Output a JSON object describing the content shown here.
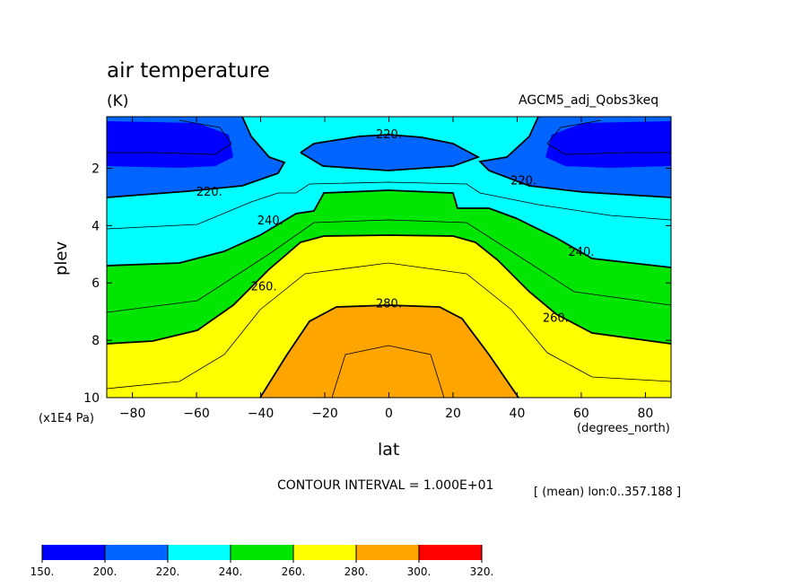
{
  "figure": {
    "title": "air temperature",
    "units": "(K)",
    "dataset": "AGCM5_adj_Qobs3keq",
    "contour_interval": "CONTOUR INTERVAL = 1.000E+01",
    "mean_note": "[ (mean) lon:0..357.188 ]",
    "x_axis_label": "lat",
    "y_axis_label": "plev",
    "x_units": "(degrees_north)",
    "y_units": "(x1E4 Pa)"
  },
  "chart_data": {
    "type": "contour",
    "title": "air temperature",
    "units": "K",
    "xlabel": "lat",
    "ylabel": "plev",
    "xlim": [
      -88,
      88
    ],
    "ylim": [
      10,
      0.2
    ],
    "xticks": [
      -80,
      -60,
      -40,
      -20,
      0,
      20,
      40,
      60,
      80
    ],
    "yticks": [
      2,
      4,
      6,
      8,
      10
    ],
    "contour_interval": 10,
    "contour_labels": [
      {
        "text": "220.",
        "lat": 0,
        "plev": 0.8
      },
      {
        "text": "220.",
        "lat": -56,
        "plev": 2.8
      },
      {
        "text": "220.",
        "lat": 42,
        "plev": 2.4
      },
      {
        "text": "240.",
        "lat": -37,
        "plev": 3.8
      },
      {
        "text": "240.",
        "lat": 60,
        "plev": 4.9
      },
      {
        "text": "260.",
        "lat": -39,
        "plev": 6.1
      },
      {
        "text": "260.",
        "lat": 52,
        "plev": 7.2
      },
      {
        "text": "280.",
        "lat": 0,
        "plev": 6.7
      }
    ],
    "fill_levels": [
      150,
      200,
      220,
      240,
      260,
      280,
      300,
      320
    ],
    "fill_colors": [
      "#0000ff",
      "#0064ff",
      "#00ffff",
      "#00e600",
      "#ffff00",
      "#ffa500",
      "#ff0000"
    ],
    "colorbar_labels": [
      "150.",
      "200.",
      "220.",
      "240.",
      "260.",
      "280.",
      "300.",
      "320."
    ]
  }
}
